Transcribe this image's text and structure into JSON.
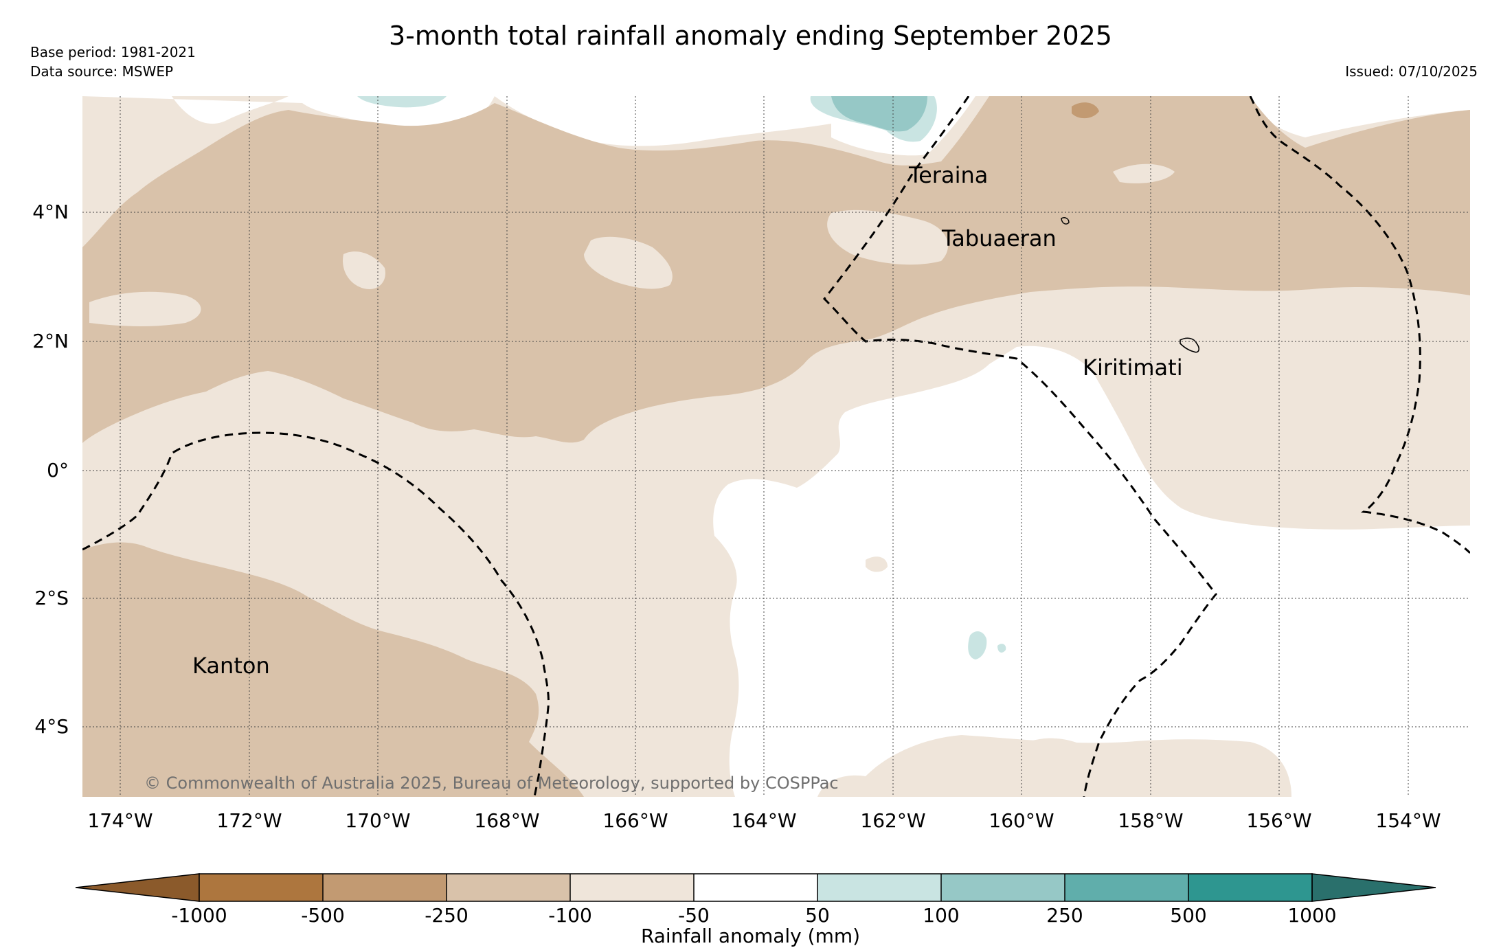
{
  "header": {
    "title": "3-month total rainfall anomaly ending September 2025",
    "base_period": "Base period: 1981-2021",
    "data_source": "Data source: MSWEP",
    "issued": "Issued: 07/10/2025"
  },
  "map": {
    "lon_ticks": [
      "174°W",
      "172°W",
      "170°W",
      "168°W",
      "166°W",
      "164°W",
      "162°W",
      "160°W",
      "158°W",
      "156°W",
      "154°W"
    ],
    "lat_ticks": [
      "4°N",
      "2°N",
      "0°",
      "2°S",
      "4°S"
    ],
    "places": [
      {
        "name": "Teraina"
      },
      {
        "name": "Tabuaeran"
      },
      {
        "name": "Kiritimati"
      },
      {
        "name": "Kanton"
      }
    ],
    "copyright": "© Commonwealth of Australia 2025, Bureau of Meteorology, supported by COSPPac",
    "colors": {
      "c_neg1000": "#8b5a2b",
      "c_neg500": "#ad763e",
      "c_neg250": "#c29a72",
      "c_neg100": "#d9c2aa",
      "c_neg50": "#efe5da",
      "c_zero": "#ffffff",
      "c_pos50": "#c9e4e2",
      "c_pos100": "#96c8c6",
      "c_pos250": "#60aeab",
      "c_pos500": "#2e9690",
      "c_pos1000": "#2a706c"
    }
  },
  "colorbar": {
    "labels": [
      "-1000",
      "-500",
      "-250",
      "-100",
      "-50",
      "50",
      "100",
      "250",
      "500",
      "1000"
    ],
    "title": "Rainfall anomaly (mm)"
  }
}
